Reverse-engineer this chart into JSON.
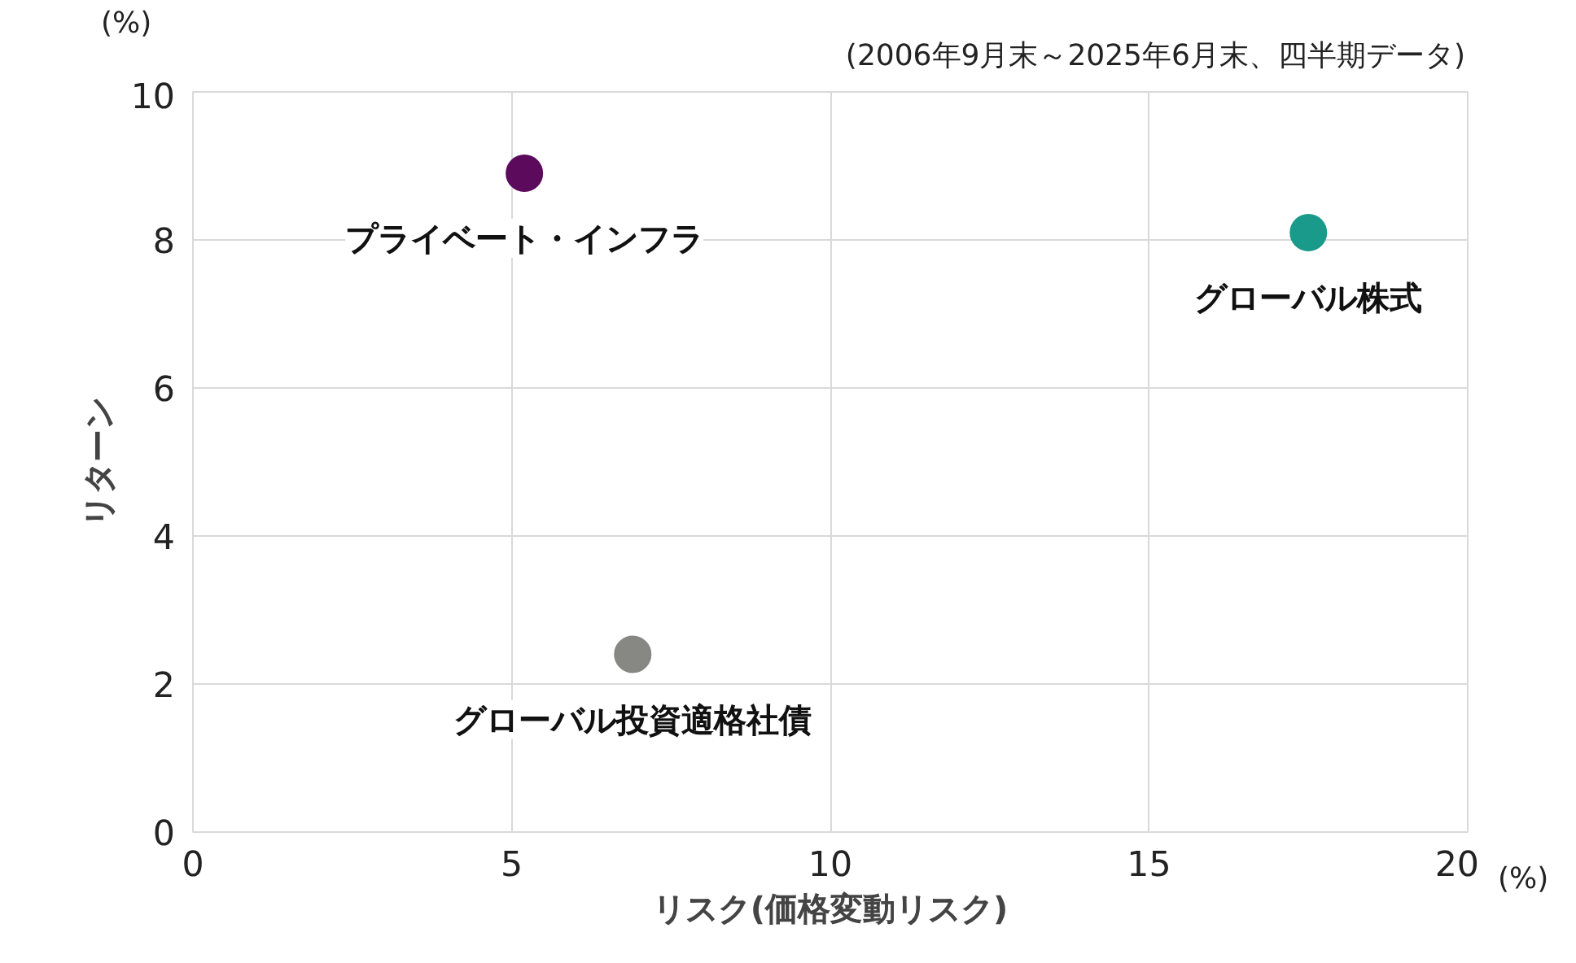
{
  "chart_data": {
    "type": "scatter",
    "xlabel": "リスク(価格変動リスク)",
    "ylabel": "リターン",
    "annotations": [
      "(2006年9月末～2025年6月末、四半期データ)",
      "(%)",
      "(%)"
    ],
    "xlim": [
      0,
      20
    ],
    "xticks": [
      0,
      5,
      10,
      15,
      20
    ],
    "ylim": [
      0,
      10
    ],
    "yticks": [
      0,
      2,
      4,
      6,
      8,
      10
    ],
    "grid": true,
    "marker": "circle",
    "series": [
      {
        "name": "プライベート・インフラ",
        "color": "#5c0a5c",
        "x": [
          5.2
        ],
        "values": [
          8.9
        ]
      },
      {
        "name": "グローバル株式",
        "color": "#1a9a8a",
        "x": [
          17.5
        ],
        "values": [
          8.1
        ]
      },
      {
        "name": "グローバル投資適格社債",
        "color": "#878783",
        "x": [
          6.9
        ],
        "values": [
          2.4
        ]
      }
    ]
  }
}
